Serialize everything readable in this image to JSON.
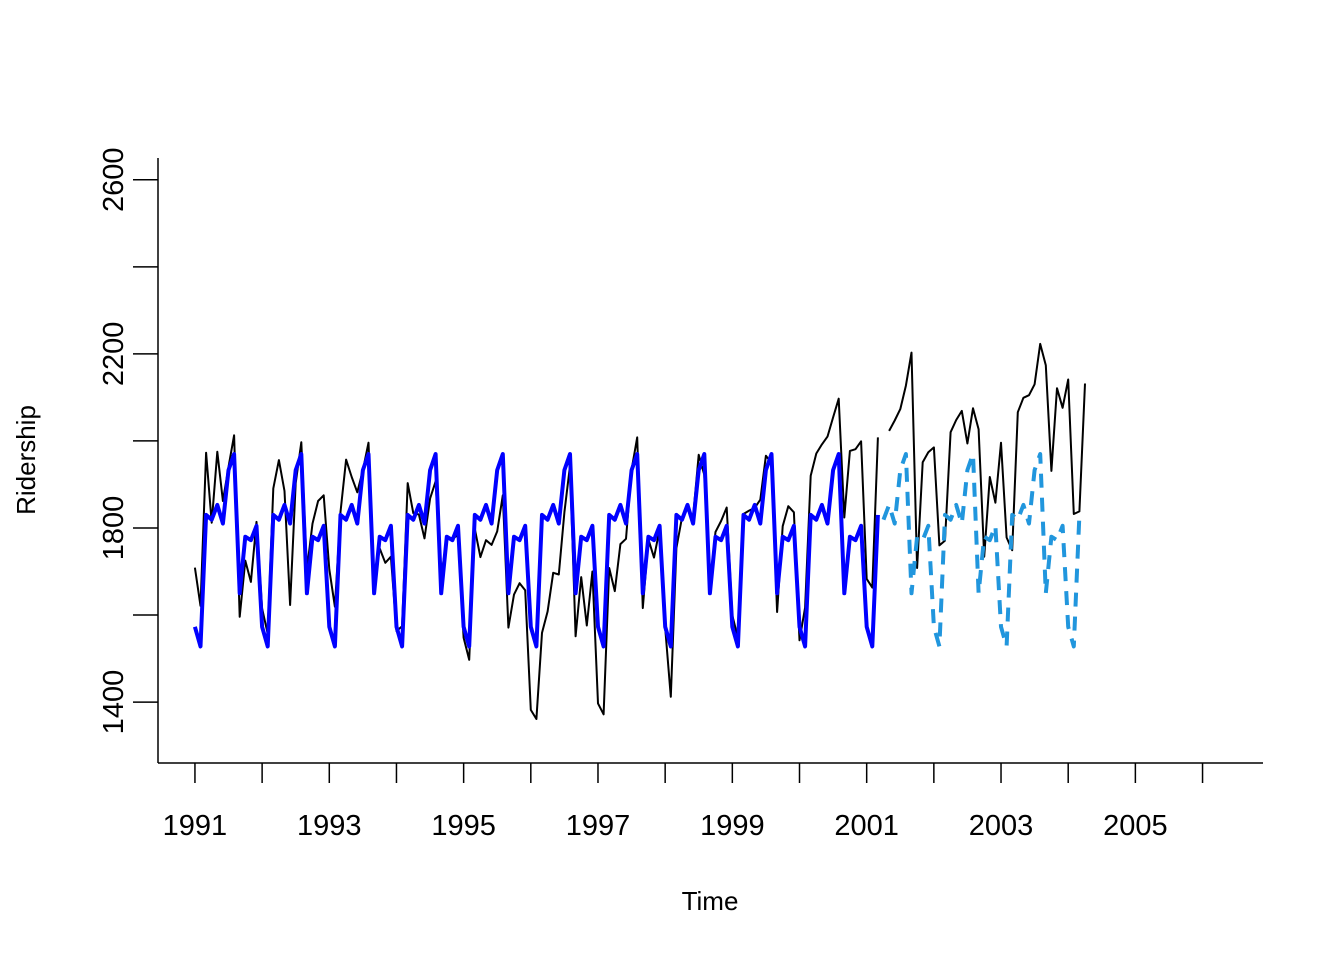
{
  "chart_data": {
    "type": "line",
    "title": "",
    "xlabel": "Time",
    "ylabel": "Ridership",
    "xlim": [
      1990.45,
      2006.9
    ],
    "ylim": [
      1260,
      2650
    ],
    "x_ticks": [
      1991,
      1992,
      1993,
      1994,
      1995,
      1996,
      1997,
      1998,
      1999,
      2000,
      2001,
      2002,
      2003,
      2004,
      2005,
      2006
    ],
    "x_tick_labels": [
      "1991",
      "1993",
      "1995",
      "1997",
      "1999",
      "2001",
      "2003",
      "2005"
    ],
    "y_ticks": [
      1400,
      1600,
      1800,
      2000,
      2200,
      2400,
      2600
    ],
    "y_tick_labels": [
      "1400",
      "1800",
      "2200",
      "2600"
    ],
    "grid": false,
    "legend": false,
    "colors": {
      "actual": "#000000",
      "fitted": "#0000FF",
      "forecast": "#2196DD"
    },
    "series": [
      {
        "key": "actual",
        "style": "solid-thin",
        "start": 1991.0,
        "step": 0.0833333,
        "values": [
          1709,
          1621,
          1973,
          1812,
          1975,
          1862,
          1940,
          2013,
          1596,
          1725,
          1676,
          1814,
          1615,
          1557,
          1891,
          1956,
          1885,
          1623,
          1903,
          1997,
          1704,
          1810,
          1862,
          1875,
          1705,
          1619,
          1837,
          1957,
          1917,
          1882,
          1933,
          1996,
          1673,
          1753,
          1720,
          1734,
          1563,
          1574,
          1903,
          1834,
          1831,
          1776,
          1868,
          1907,
          1686,
          1779,
          1776,
          1783,
          1548,
          1497,
          1798,
          1733,
          1772,
          1761,
          1792,
          1875,
          1571,
          1647,
          1673,
          1657,
          1382,
          1361,
          1559,
          1608,
          1697,
          1693,
          1836,
          1943,
          1551,
          1687,
          1576,
          1700,
          1397,
          1372,
          1708,
          1655,
          1763,
          1775,
          1934,
          2008,
          1616,
          1774,
          1732,
          1797,
          1570,
          1412,
          1754,
          1824,
          1843,
          1826,
          1968,
          1922,
          1670,
          1791,
          1816,
          1847,
          1599,
          1548,
          1832,
          1840,
          1846,
          1865,
          1966,
          1949,
          1607,
          1804,
          1850,
          1836,
          1542,
          1617,
          1920,
          1971,
          1992,
          2010,
          2054,
          2097,
          1824,
          1977,
          1981,
          1999,
          1683,
          1663,
          2008,
          null,
          2023,
          2047,
          2073,
          2127,
          2203,
          1708,
          1951,
          1974,
          1985,
          1760,
          1771,
          2020,
          2048,
          2069,
          1994,
          2075,
          2027,
          1734,
          1917,
          1858,
          1996,
          1778,
          1749,
          2066,
          2099,
          2105,
          2130,
          2223,
          2174,
          1931,
          2121,
          2076,
          2141,
          1832,
          1838,
          2132
        ]
      },
      {
        "key": "fitted",
        "style": "solid-thick",
        "start": 1991.0,
        "step": 0.0833333,
        "values": [
          1573,
          1528,
          1830,
          1819,
          1853,
          1810,
          1933,
          1970,
          1650,
          1780,
          1772,
          1805,
          1573,
          1528,
          1830,
          1819,
          1853,
          1810,
          1933,
          1970,
          1650,
          1780,
          1772,
          1805,
          1573,
          1528,
          1830,
          1819,
          1853,
          1810,
          1933,
          1970,
          1650,
          1780,
          1772,
          1805,
          1573,
          1528,
          1830,
          1819,
          1853,
          1810,
          1933,
          1970,
          1650,
          1780,
          1772,
          1805,
          1573,
          1528,
          1830,
          1819,
          1853,
          1810,
          1933,
          1970,
          1650,
          1780,
          1772,
          1805,
          1573,
          1528,
          1830,
          1819,
          1853,
          1810,
          1933,
          1970,
          1650,
          1780,
          1772,
          1805,
          1573,
          1528,
          1830,
          1819,
          1853,
          1810,
          1933,
          1970,
          1650,
          1780,
          1772,
          1805,
          1573,
          1528,
          1830,
          1819,
          1853,
          1810,
          1933,
          1970,
          1650,
          1780,
          1772,
          1805,
          1573,
          1528,
          1830,
          1819,
          1853,
          1810,
          1933,
          1970,
          1650,
          1780,
          1772,
          1805,
          1573,
          1528,
          1830,
          1819,
          1853,
          1810,
          1933,
          1970,
          1650,
          1780,
          1772,
          1805,
          1573,
          1528,
          1830
        ]
      },
      {
        "key": "forecast",
        "style": "dashed-thick",
        "start": 2001.25,
        "step": 0.0833333,
        "values": [
          1819,
          1853,
          1810,
          1933,
          1970,
          1650,
          1780,
          1772,
          1805,
          1573,
          1528,
          1830,
          1819,
          1853,
          1810,
          1933,
          1970,
          1650,
          1780,
          1772,
          1805,
          1573,
          1528,
          1830,
          1819,
          1853,
          1810,
          1933,
          1970,
          1650,
          1780,
          1772,
          1805,
          1573,
          1528,
          1830
        ]
      }
    ]
  }
}
